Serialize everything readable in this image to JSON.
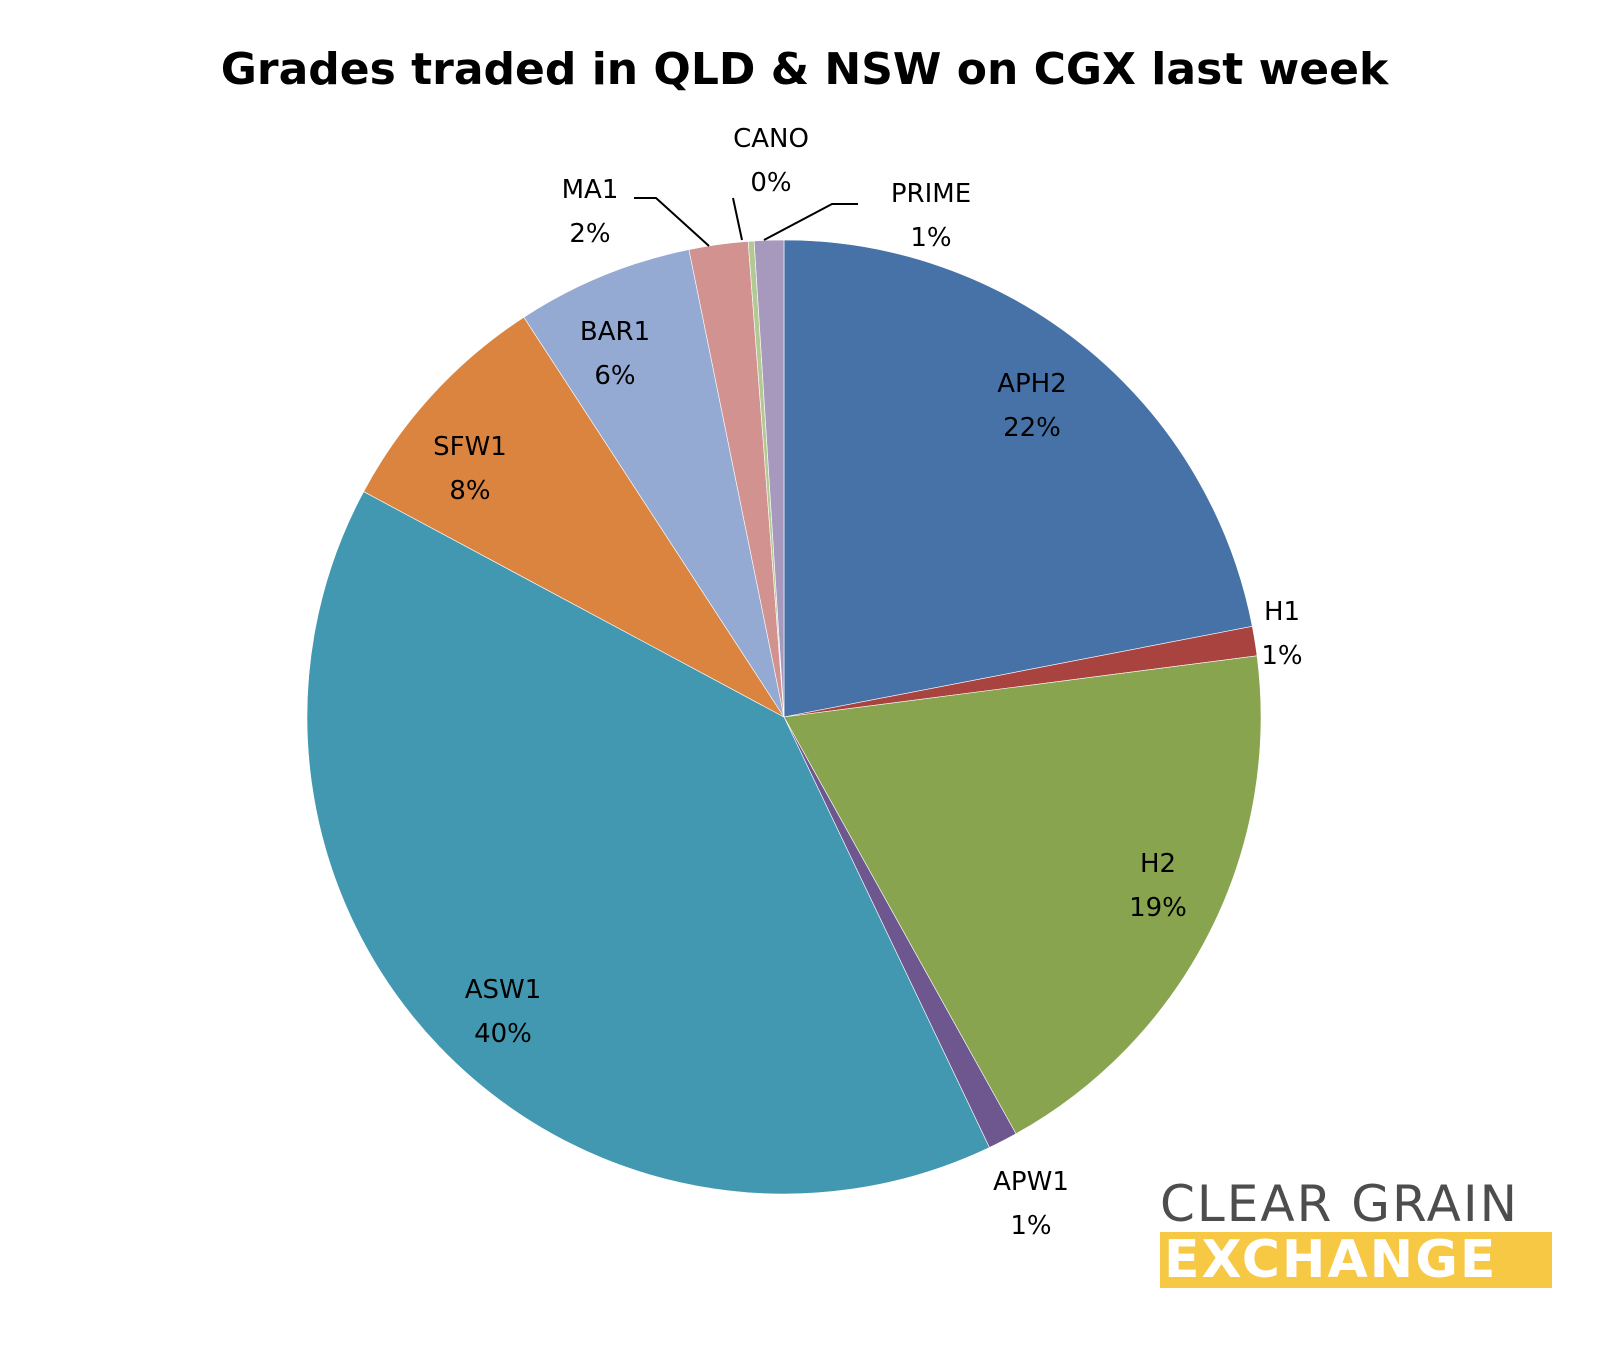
{
  "title": "Grades traded in QLD & NSW on CGX last week",
  "logo": {
    "line1": "CLEAR GRAIN",
    "line2": "EXCHANGE"
  },
  "chart_data": {
    "type": "pie",
    "title": "Grades traded in QLD & NSW on CGX last week",
    "start": "12 o'clock",
    "direction": "clockwise",
    "slices": [
      {
        "label": "APH2",
        "value": 22,
        "display": "22%",
        "color": "#4672a7",
        "label_pos": "inside"
      },
      {
        "label": "H1",
        "value": 1,
        "display": "1%",
        "color": "#a84340",
        "label_pos": "outside"
      },
      {
        "label": "H2",
        "value": 19,
        "display": "19%",
        "color": "#88a44e",
        "label_pos": "inside"
      },
      {
        "label": "APW1",
        "value": 1,
        "display": "1%",
        "color": "#6e578f",
        "label_pos": "outside"
      },
      {
        "label": "ASW1",
        "value": 40,
        "display": "40%",
        "color": "#4198b0",
        "label_pos": "inside"
      },
      {
        "label": "SFW1",
        "value": 8,
        "display": "8%",
        "color": "#da8440",
        "label_pos": "inside"
      },
      {
        "label": "BAR1",
        "value": 6,
        "display": "6%",
        "color": "#95aad2",
        "label_pos": "inside"
      },
      {
        "label": "MA1",
        "value": 2,
        "display": "2%",
        "color": "#d29290",
        "label_pos": "outside"
      },
      {
        "label": "CANO",
        "value": 0.2,
        "display": "0%",
        "color": "#b3c994",
        "label_pos": "outside"
      },
      {
        "label": "PRIME",
        "value": 1,
        "display": "1%",
        "color": "#a799be",
        "label_pos": "outside"
      }
    ]
  }
}
